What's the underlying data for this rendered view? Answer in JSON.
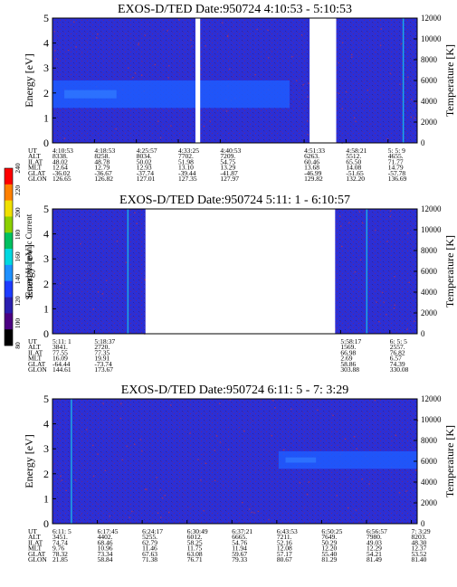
{
  "colors": {
    "background_blue": "#2b2fd6",
    "band_blue": "#1f5cff",
    "noise_dark": "#2a1d78",
    "noise_red": "#a0203a",
    "gap": "#ffffff"
  },
  "colorbar": {
    "label": "Second Harmonic Current",
    "ticks": [
      "80",
      "100",
      "120",
      "140",
      "160",
      "180",
      "200",
      "220",
      "240"
    ],
    "colors": [
      "#000000",
      "#4b0082",
      "#2a1fb0",
      "#1e3cff",
      "#1e90ff",
      "#00d8e0",
      "#00c060",
      "#8cd000",
      "#f0e000",
      "#ff8000",
      "#ff0000"
    ]
  },
  "chart_data": [
    {
      "type": "heatmap",
      "title": "EXOS-D/TED   Date:950724  4:10:53 - 5:10:53",
      "ylabel": "Energy [eV]",
      "ylabel_right": "Temperature [K]",
      "ylim": [
        0,
        5
      ],
      "ylim_right": [
        0,
        12000
      ],
      "yticks": [
        "0",
        "1",
        "2",
        "3",
        "4",
        "5"
      ],
      "yticks_right": [
        "0",
        "2000",
        "4000",
        "6000",
        "8000",
        "10000",
        "12000"
      ],
      "data_gaps": [
        [
          0.392,
          0.405
        ],
        [
          0.705,
          0.778
        ]
      ],
      "enhanced_band": {
        "x_range": [
          0.0,
          0.65
        ],
        "energy_range": [
          1.4,
          2.5
        ]
      },
      "table": {
        "row_labels": [
          "UT",
          "ALT",
          "ILAT",
          "MLT",
          "GLAT",
          "GLON"
        ],
        "columns": [
          {
            "pos": 0.0,
            "values": [
              "4:10:53",
              "8338.",
              "48.02",
              "12.64",
              "-36.02",
              "126.65"
            ]
          },
          {
            "pos": 0.115,
            "values": [
              "4:18:53",
              "8258.",
              "48.78",
              "12.79",
              "-36.67",
              "126.82"
            ]
          },
          {
            "pos": 0.23,
            "values": [
              "4:25:57",
              "8034.",
              "50.02",
              "12.93",
              "-37.74",
              "127.01"
            ]
          },
          {
            "pos": 0.345,
            "values": [
              "4:33:25",
              "7702.",
              "51.98",
              "13.10",
              "-39.44",
              "127.35"
            ]
          },
          {
            "pos": 0.46,
            "values": [
              "4:40:53",
              "7209.",
              "54.75",
              "13.29",
              "-41.87",
              "127.97"
            ]
          },
          {
            "pos": 0.69,
            "values": [
              "4:51:33",
              "6263.",
              "60.46",
              "13.68",
              "-46.99",
              "129.82"
            ]
          },
          {
            "pos": 0.805,
            "values": [
              "4:58:21",
              "5512.",
              "65.50",
              "14.08",
              "-51.65",
              "132.20"
            ]
          },
          {
            "pos": 0.92,
            "values": [
              "5: 5: 9",
              "4655.",
              "71.77",
              "14.79",
              "-57.78",
              "136.69"
            ]
          }
        ]
      }
    },
    {
      "type": "heatmap",
      "title": "EXOS-D/TED   Date:950724  5:11: 1 - 6:10:57",
      "ylabel": "Energy [eV]",
      "ylabel_right": "Temperature [K]",
      "ylim": [
        0,
        5
      ],
      "ylim_right": [
        0,
        12000
      ],
      "yticks": [
        "0",
        "1",
        "2",
        "3",
        "4",
        "5"
      ],
      "yticks_right": [
        "0",
        "2000",
        "4000",
        "6000",
        "8000",
        "10000",
        "12000"
      ],
      "data_gaps": [
        [
          0.255,
          0.775
        ]
      ],
      "table": {
        "row_labels": [
          "UT",
          "ALT",
          "ILAT",
          "MLT",
          "GLAT",
          "GLON"
        ],
        "columns": [
          {
            "pos": 0.0,
            "values": [
              "5:11: 1",
              "3841.",
              "77.55",
              "16.09",
              "-64.44",
              "144.61"
            ]
          },
          {
            "pos": 0.115,
            "values": [
              "5:18:37",
              "2720.",
              "77.35",
              "19.91",
              "-73.74",
              "173.67"
            ]
          },
          {
            "pos": 0.79,
            "values": [
              "5:58:17",
              "1569.",
              "66.98",
              "2.69",
              "58.86",
              "303.88"
            ]
          },
          {
            "pos": 0.925,
            "values": [
              "6: 5: 5",
              "2557.",
              "76.82",
              "6.57",
              "74.39",
              "330.08"
            ]
          }
        ]
      }
    },
    {
      "type": "heatmap",
      "title": "EXOS-D/TED   Date:950724  6:11: 5 -  7: 3:29",
      "ylabel": "Energy [eV]",
      "ylabel_right": "Temperature [K]",
      "ylim": [
        0,
        5
      ],
      "ylim_right": [
        0,
        12000
      ],
      "yticks": [
        "0",
        "1",
        "2",
        "3",
        "4",
        "5"
      ],
      "yticks_right": [
        "0",
        "2000",
        "4000",
        "6000",
        "8000",
        "10000",
        "12000"
      ],
      "data_gaps": [],
      "enhanced_band": {
        "x_range": [
          0.62,
          1.0
        ],
        "energy_range": [
          2.2,
          2.9
        ]
      },
      "table": {
        "row_labels": [
          "UT",
          "ALT",
          "ILAT",
          "MLT",
          "GLAT",
          "GLON"
        ],
        "columns": [
          {
            "pos": 0.0,
            "values": [
              "6:11: 5",
              "3451.",
              "74.74",
              "9.76",
              "78.32",
              "21.85"
            ]
          },
          {
            "pos": 0.123,
            "values": [
              "6:17:45",
              "4402.",
              "68.46",
              "10.96",
              "73.34",
              "58.84"
            ]
          },
          {
            "pos": 0.246,
            "values": [
              "6:24:17",
              "5255.",
              "62.79",
              "11.46",
              "67.63",
              "71.38"
            ]
          },
          {
            "pos": 0.369,
            "values": [
              "6:30:49",
              "6012.",
              "58.25",
              "11.75",
              "63.08",
              "76.71"
            ]
          },
          {
            "pos": 0.492,
            "values": [
              "6:37:21",
              "6665.",
              "54.76",
              "11.94",
              "59.67",
              "79.33"
            ]
          },
          {
            "pos": 0.615,
            "values": [
              "6:43:53",
              "7211.",
              "52.16",
              "12.08",
              "57.17",
              "80.67"
            ]
          },
          {
            "pos": 0.738,
            "values": [
              "6:50:25",
              "7649.",
              "50.29",
              "12.20",
              "55.40",
              "81.29"
            ]
          },
          {
            "pos": 0.861,
            "values": [
              "6:56:57",
              "7980.",
              "49.03",
              "12.29",
              "54.21",
              "81.49"
            ]
          },
          {
            "pos": 0.984,
            "values": [
              "7: 3:29",
              "8203.",
              "48.30",
              "12.37",
              "53.52",
              "81.40"
            ]
          }
        ]
      }
    }
  ]
}
